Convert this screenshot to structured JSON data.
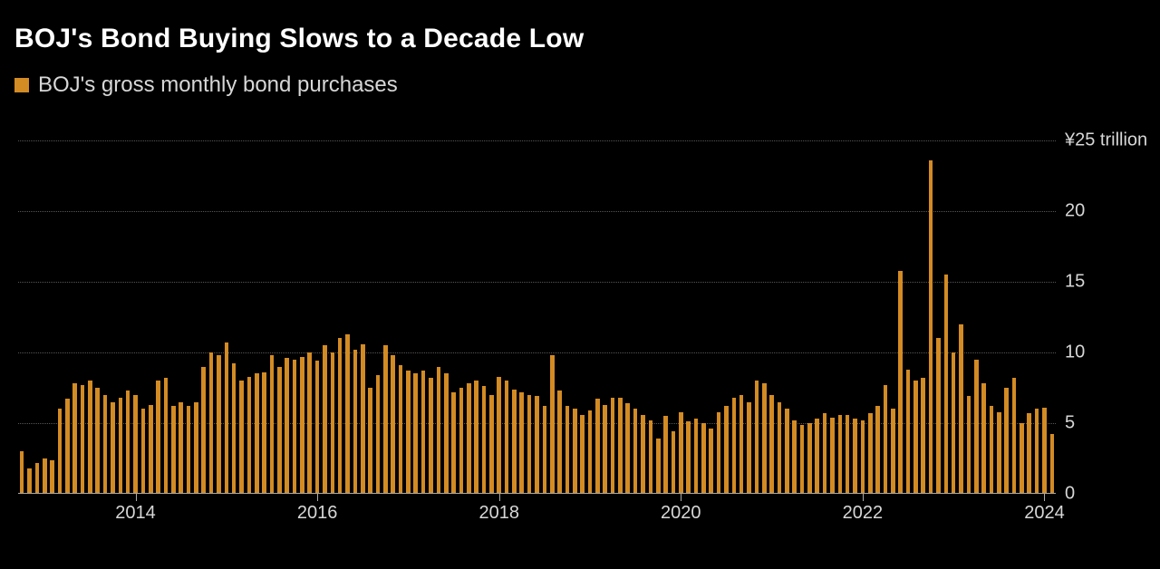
{
  "title": "BOJ's Bond Buying Slows to a Decade Low",
  "legend": {
    "swatch_color": "#d38b24",
    "label": "BOJ's gross monthly bond purchases"
  },
  "chart": {
    "type": "bar",
    "background_color": "#000000",
    "bar_color": "#d38b24",
    "grid_color": "#555555",
    "axis_color": "#aaaaaa",
    "text_color": "#d7d7d7",
    "title_color": "#ffffff",
    "title_fontsize": 30,
    "legend_fontsize": 24,
    "tick_fontsize": 20,
    "y_unit_prefix": "¥",
    "y_unit_suffix": " trillion",
    "ylim": [
      0,
      25
    ],
    "y_ticks": [
      0,
      5,
      10,
      15,
      20,
      25
    ],
    "y_first_tick_label": "¥25 trillion",
    "x_tick_years": [
      2014,
      2016,
      2018,
      2020,
      2022,
      2024
    ],
    "start_year": 2013,
    "start_month": 4,
    "bar_width_ratio": 0.55,
    "values": [
      3.0,
      1.8,
      2.2,
      2.5,
      2.4,
      6.0,
      6.7,
      7.8,
      7.7,
      8.0,
      7.5,
      7.0,
      6.5,
      6.8,
      7.3,
      7.0,
      6.0,
      6.3,
      8.0,
      8.2,
      6.2,
      6.5,
      6.2,
      6.5,
      9.0,
      10.0,
      9.8,
      10.7,
      9.2,
      8.0,
      8.3,
      8.5,
      8.6,
      9.8,
      9.0,
      9.6,
      9.5,
      9.7,
      10.0,
      9.4,
      10.5,
      10.0,
      11.0,
      11.3,
      10.2,
      10.6,
      7.5,
      8.4,
      10.5,
      9.8,
      9.1,
      8.7,
      8.5,
      8.7,
      8.2,
      9.0,
      8.5,
      7.2,
      7.5,
      7.8,
      8.0,
      7.6,
      7.0,
      8.3,
      8.0,
      7.4,
      7.2,
      7.0,
      6.9,
      6.2,
      9.8,
      7.3,
      6.2,
      6.0,
      5.6,
      5.9,
      6.7,
      6.3,
      6.8,
      6.8,
      6.4,
      6.0,
      5.6,
      5.2,
      3.9,
      5.5,
      4.4,
      5.8,
      5.1,
      5.3,
      5.0,
      4.6,
      5.8,
      6.2,
      6.8,
      7.0,
      6.5,
      8.0,
      7.8,
      7.0,
      6.5,
      6.0,
      5.2,
      4.9,
      5.0,
      5.3,
      5.7,
      5.4,
      5.6,
      5.6,
      5.3,
      5.2,
      5.7,
      6.2,
      7.7,
      6.0,
      15.8,
      8.8,
      8.0,
      8.2,
      23.6,
      11.0,
      15.5,
      10.0,
      12.0,
      6.9,
      9.5,
      7.8,
      6.2,
      5.8,
      7.5,
      8.2,
      5.0,
      5.7,
      6.0,
      6.1,
      4.2
    ]
  }
}
